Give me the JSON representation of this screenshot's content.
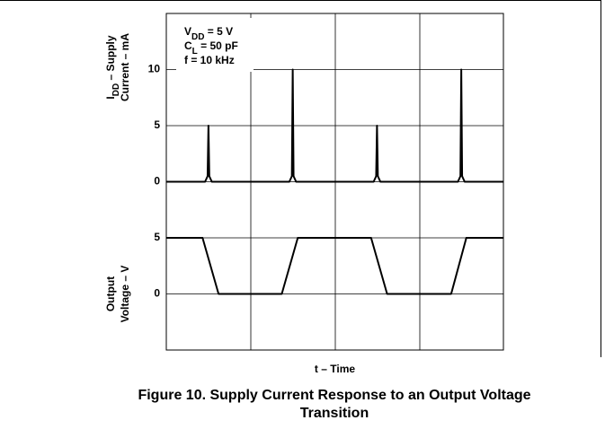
{
  "chart_data": [
    {
      "type": "line",
      "ylabel": [
        [
          {
            "text": "I"
          },
          {
            "text": "DD",
            "sub": true
          },
          {
            "text": " – Supply"
          }
        ],
        [
          {
            "text": "Current – mA"
          }
        ]
      ],
      "annotation": [
        [
          {
            "text": "V"
          },
          {
            "text": "DD",
            "sub": true
          },
          {
            "text": " = 5 V"
          }
        ],
        [
          {
            "text": "C"
          },
          {
            "text": "L",
            "sub": true
          },
          {
            "text": " = 50 pF"
          }
        ],
        [
          {
            "text": "f = 10 kHz"
          }
        ]
      ],
      "xlim": [
        0,
        4
      ],
      "ylim": [
        -5,
        15
      ],
      "yticks": [
        0,
        5,
        10
      ],
      "grid": true,
      "series": [
        {
          "color": "#000000",
          "x": [
            0,
            0.46,
            0.49,
            0.5,
            0.51,
            0.54,
            1.46,
            1.49,
            1.5,
            1.51,
            1.54,
            2.46,
            2.49,
            2.5,
            2.51,
            2.54,
            3.46,
            3.49,
            3.5,
            3.51,
            3.54,
            4
          ],
          "values": [
            0,
            0,
            0.5,
            5,
            0.5,
            0,
            0,
            0.5,
            10,
            0.5,
            0,
            0,
            0.5,
            5,
            0.5,
            0,
            0,
            0.5,
            10,
            0.5,
            0,
            0
          ]
        }
      ]
    },
    {
      "type": "line",
      "ylabel": [
        [
          {
            "text": "Output"
          }
        ],
        [
          {
            "text": "Voltage – V"
          }
        ]
      ],
      "xlabel": "t – Time",
      "xlim": [
        0,
        4
      ],
      "ylim": [
        -5,
        5
      ],
      "yticks": [
        0,
        5
      ],
      "grid": true,
      "series": [
        {
          "color": "#000000",
          "x": [
            0,
            0.43,
            0.62,
            1.37,
            1.56,
            2.43,
            2.62,
            3.38,
            3.56,
            4
          ],
          "values": [
            5,
            5,
            0,
            0,
            5,
            5,
            0,
            0,
            5,
            5
          ]
        }
      ]
    }
  ],
  "caption": [
    "Figure 10. Supply Current Response to an Output Voltage",
    "Transition"
  ]
}
